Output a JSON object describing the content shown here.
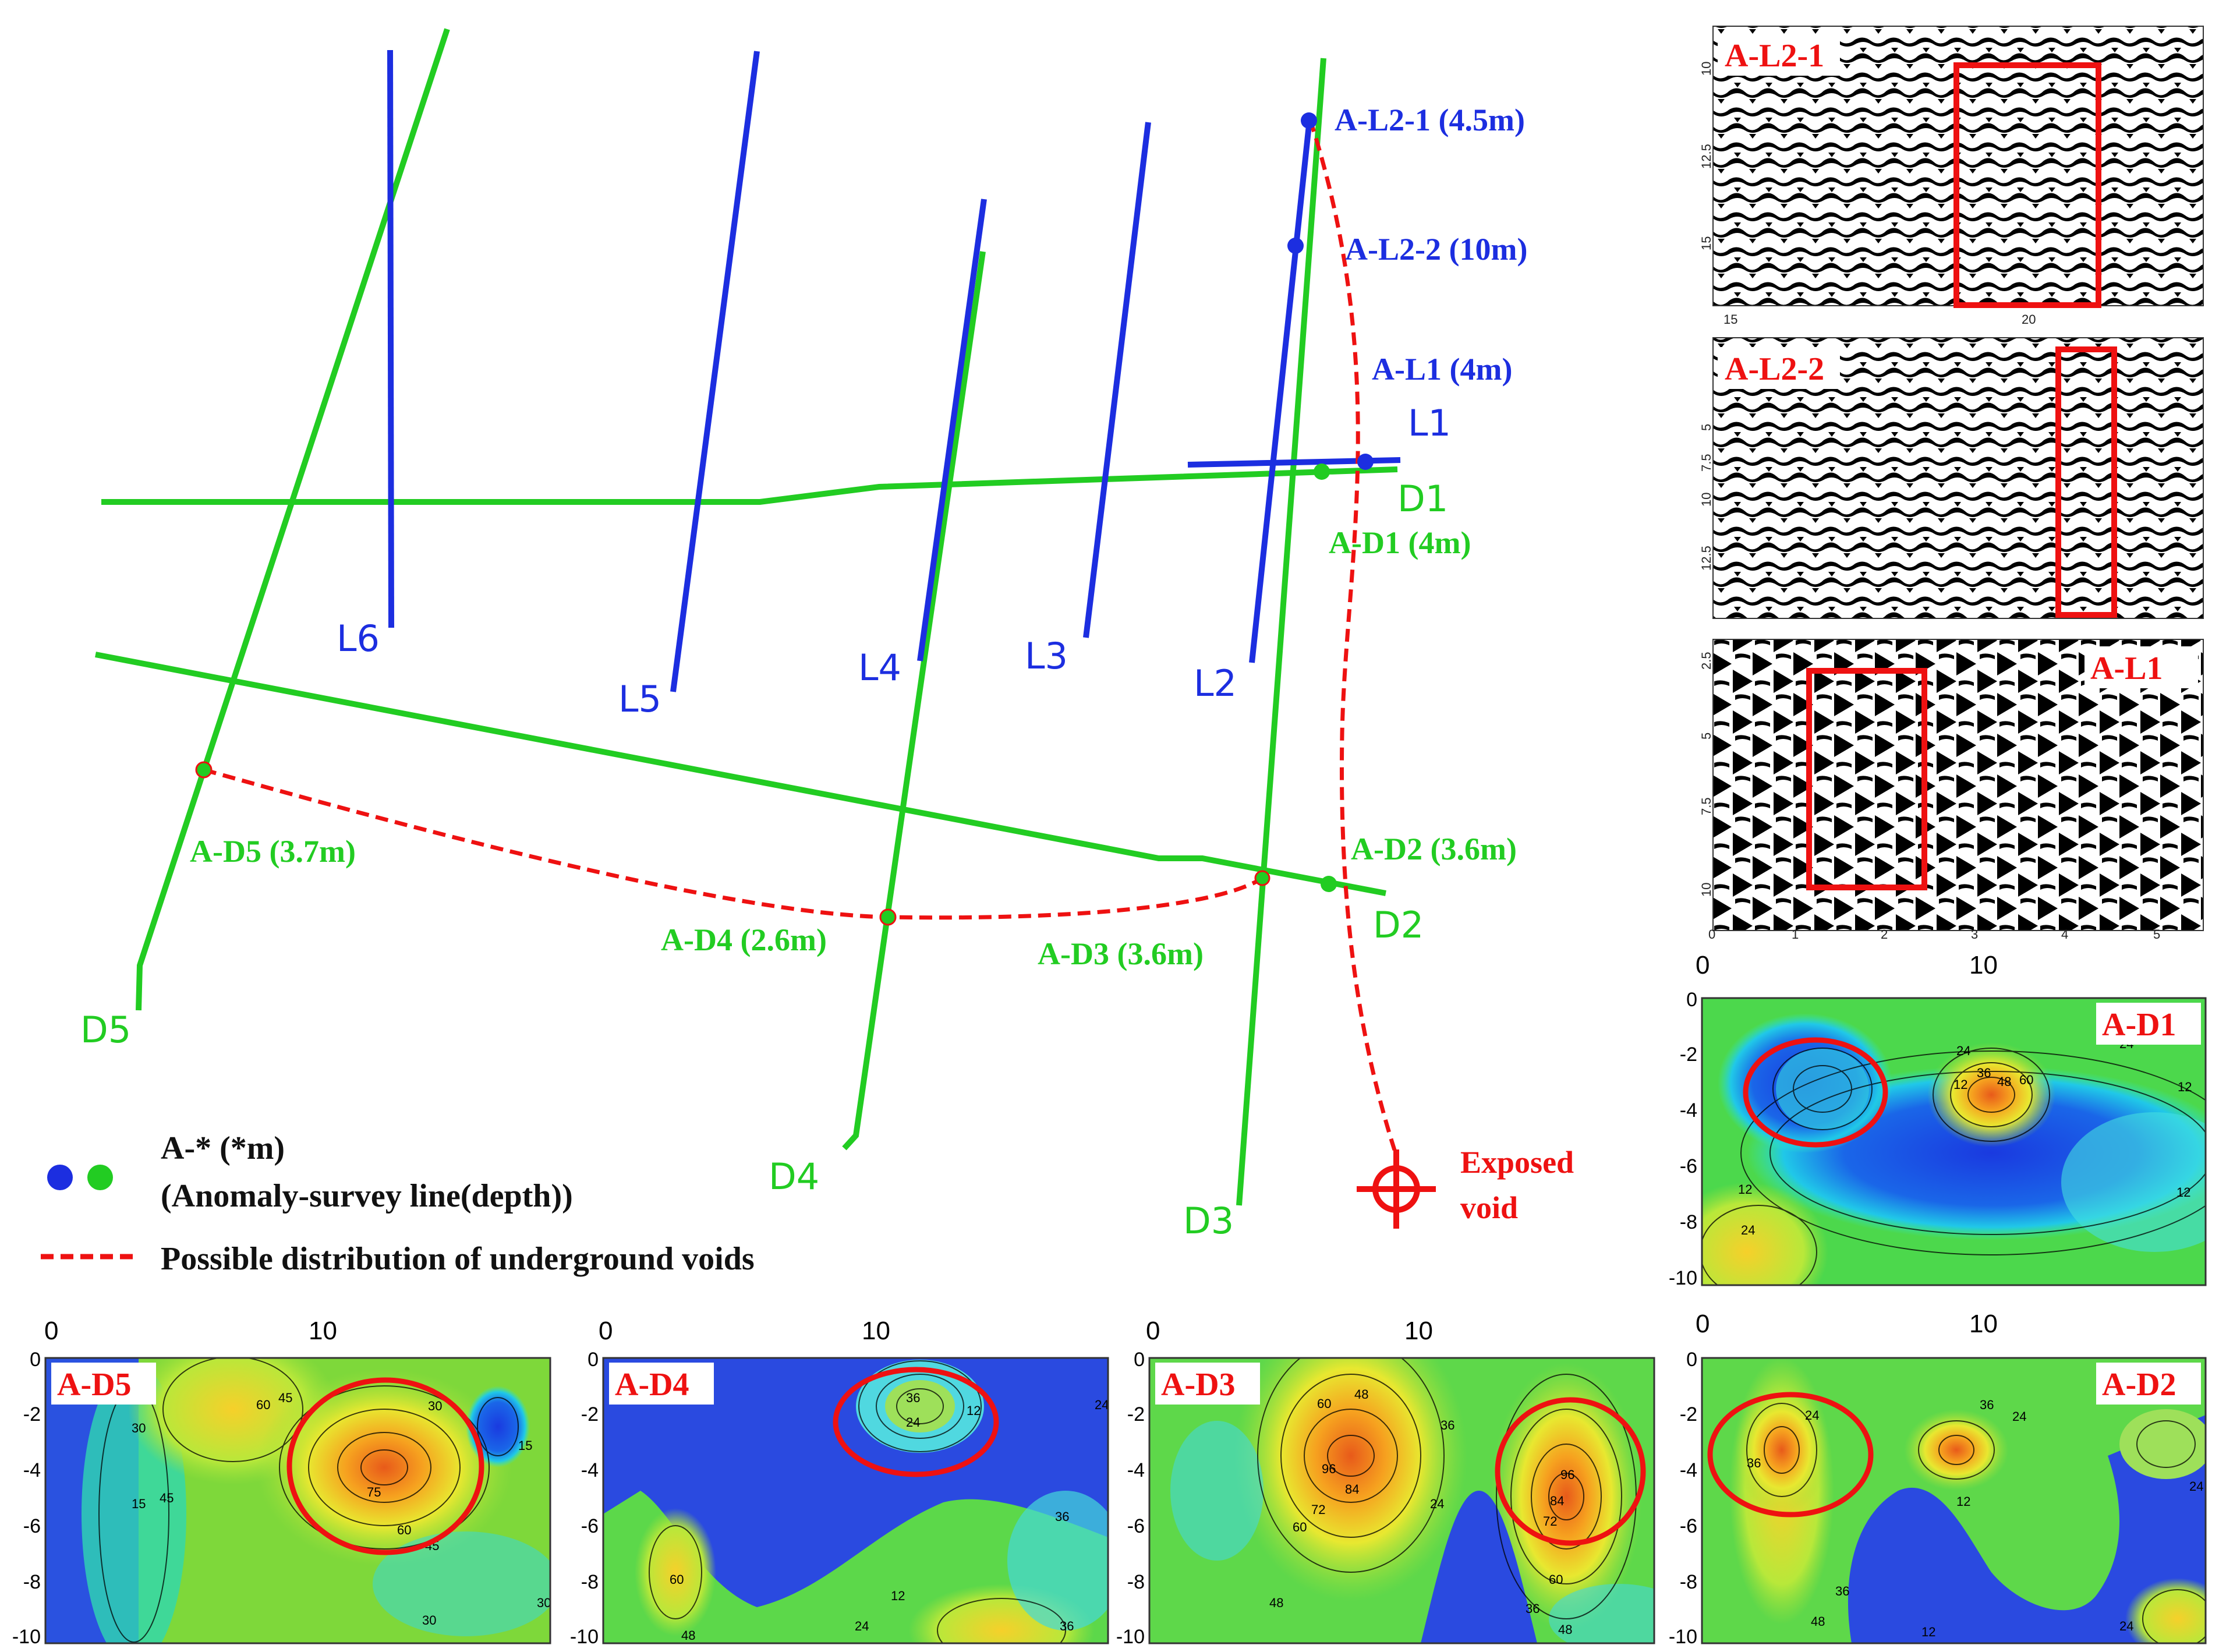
{
  "colors": {
    "blue": "#1c2ee0",
    "green": "#22cc22",
    "red": "#ee1111"
  },
  "map": {
    "survey_lines": {
      "L1": "L1",
      "L2": "L2",
      "L3": "L3",
      "L4": "L4",
      "L5": "L5",
      "L6": "L6",
      "D1": "D1",
      "D2": "D2",
      "D3": "D3",
      "D4": "D4",
      "D5": "D5"
    },
    "anomalies": {
      "a_l2_1": "A-L2-1 (4.5m)",
      "a_l2_2": "A-L2-2 (10m)",
      "a_l1": "A-L1 (4m)",
      "a_d1": "A-D1 (4m)",
      "a_d2": "A-D2 (3.6m)",
      "a_d3": "A-D3 (3.6m)",
      "a_d4": "A-D4 (2.6m)",
      "a_d5": "A-D5 (3.7m)"
    },
    "exposed_void": [
      "Exposed",
      "void"
    ]
  },
  "legend": {
    "anomaly_line1": "A-* (*m)",
    "anomaly_line2": "(Anomaly-survey line(depth))",
    "voids": "Possible distribution of underground voids"
  },
  "radar_panels": {
    "l2_1": {
      "title": "A-L2-1",
      "y_ticks": [
        "10",
        "12.5",
        "15"
      ],
      "x_ticks": [
        "15",
        "20"
      ]
    },
    "l2_2": {
      "title": "A-L2-2",
      "y_ticks": [
        "5",
        "7.5",
        "10",
        "12.5"
      ]
    },
    "l1": {
      "title": "A-L1",
      "y_ticks": [
        "2.5",
        "5",
        "7.5",
        "10"
      ],
      "x_ticks": [
        "0",
        "1",
        "2",
        "3",
        "4",
        "5"
      ]
    }
  },
  "contour_panels": {
    "x_ticks": [
      "0",
      "10"
    ],
    "y_ticks": [
      "0",
      "-2",
      "-4",
      "-6",
      "-8",
      "-10"
    ],
    "d1": {
      "title": "A-D1",
      "contour_labels": [
        "24",
        "24",
        "12",
        "36",
        "48",
        "60",
        "12",
        "12",
        "12",
        "24"
      ]
    },
    "d5": {
      "title": "A-D5",
      "contour_labels": [
        "60",
        "45",
        "30",
        "30",
        "15",
        "45",
        "75",
        "60",
        "45",
        "15",
        "30",
        "30"
      ]
    },
    "d4": {
      "title": "A-D4",
      "contour_labels": [
        "12",
        "36",
        "12",
        "24",
        "24",
        "60",
        "12",
        "36",
        "48",
        "24",
        "36"
      ]
    },
    "d3": {
      "title": "A-D3",
      "contour_labels": [
        "60",
        "48",
        "36",
        "96",
        "84",
        "72",
        "60",
        "48",
        "24",
        "96",
        "84",
        "72",
        "60",
        "36",
        "48"
      ]
    },
    "d2": {
      "title": "A-D2",
      "contour_labels": [
        "24",
        "36",
        "36",
        "24",
        "12",
        "24",
        "36",
        "48",
        "12",
        "24"
      ]
    }
  }
}
